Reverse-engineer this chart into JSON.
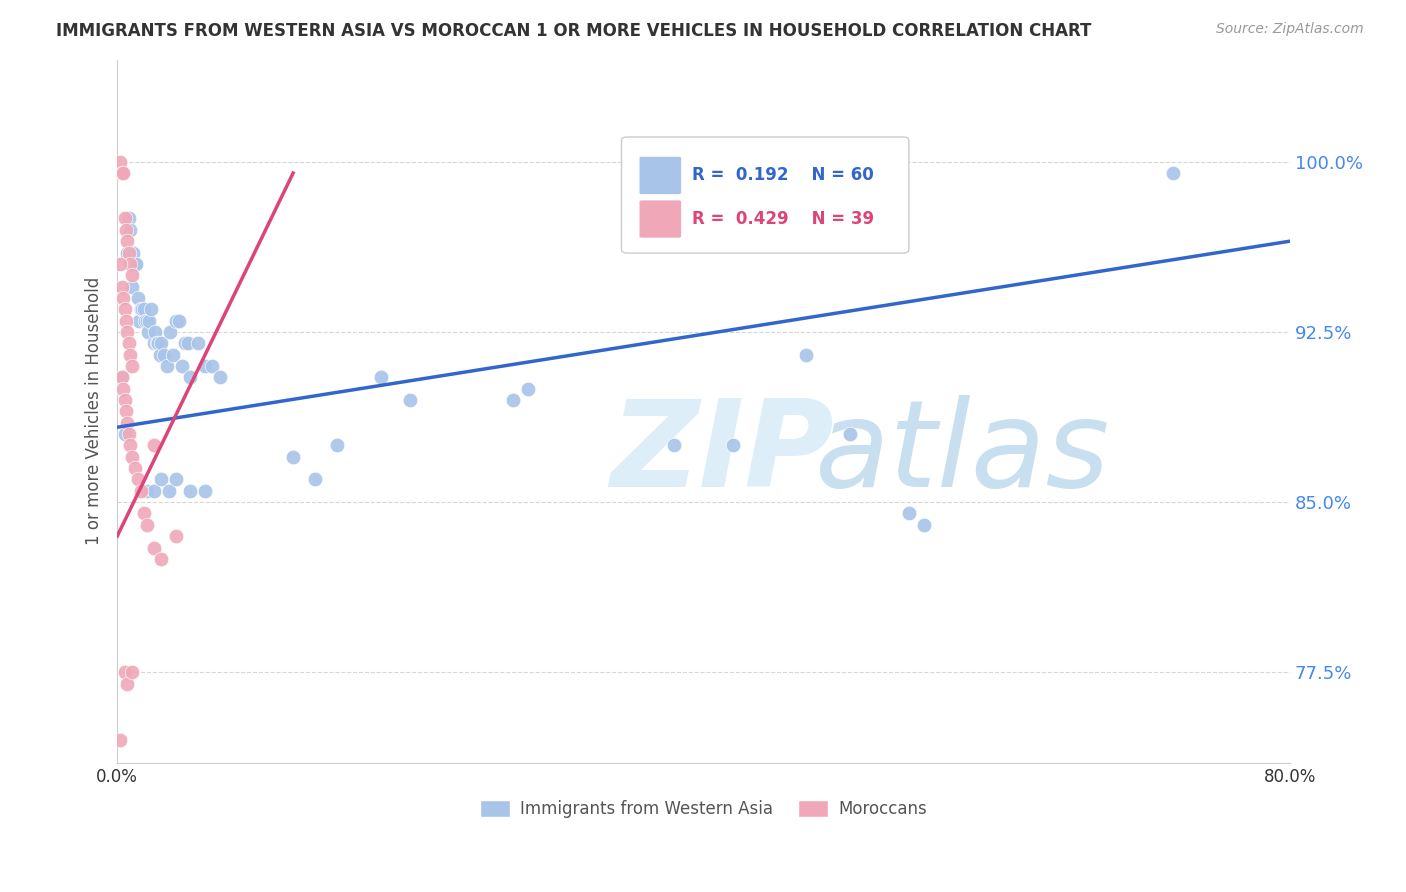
{
  "title": "IMMIGRANTS FROM WESTERN ASIA VS MOROCCAN 1 OR MORE VEHICLES IN HOUSEHOLD CORRELATION CHART",
  "source": "Source: ZipAtlas.com",
  "ylabel": "1 or more Vehicles in Household",
  "xlim": [
    0.0,
    0.8
  ],
  "ylim": [
    0.735,
    1.045
  ],
  "yticks": [
    0.775,
    0.85,
    0.925,
    1.0
  ],
  "ytick_labels": [
    "77.5%",
    "85.0%",
    "92.5%",
    "100.0%"
  ],
  "xticks": [
    0.0,
    0.1,
    0.2,
    0.3,
    0.4,
    0.5,
    0.6,
    0.7,
    0.8
  ],
  "xtick_labels": [
    "0.0%",
    "",
    "",
    "",
    "",
    "",
    "",
    "",
    "80.0%"
  ],
  "blue_R": 0.192,
  "blue_N": 60,
  "pink_R": 0.429,
  "pink_N": 39,
  "blue_color": "#a8c4e8",
  "pink_color": "#f0a8b8",
  "blue_line_color": "#3366cc",
  "pink_line_color": "#dd4477",
  "scatter_size": 110,
  "blue_scatter": [
    [
      0.003,
      0.905
    ],
    [
      0.005,
      0.88
    ],
    [
      0.007,
      0.96
    ],
    [
      0.008,
      0.975
    ],
    [
      0.009,
      0.97
    ],
    [
      0.01,
      0.945
    ],
    [
      0.011,
      0.96
    ],
    [
      0.012,
      0.955
    ],
    [
      0.013,
      0.955
    ],
    [
      0.014,
      0.94
    ],
    [
      0.015,
      0.93
    ],
    [
      0.016,
      0.935
    ],
    [
      0.017,
      0.935
    ],
    [
      0.018,
      0.935
    ],
    [
      0.019,
      0.93
    ],
    [
      0.02,
      0.93
    ],
    [
      0.021,
      0.925
    ],
    [
      0.022,
      0.93
    ],
    [
      0.023,
      0.935
    ],
    [
      0.025,
      0.92
    ],
    [
      0.026,
      0.925
    ],
    [
      0.027,
      0.92
    ],
    [
      0.028,
      0.92
    ],
    [
      0.029,
      0.915
    ],
    [
      0.03,
      0.92
    ],
    [
      0.032,
      0.915
    ],
    [
      0.034,
      0.91
    ],
    [
      0.036,
      0.925
    ],
    [
      0.038,
      0.915
    ],
    [
      0.04,
      0.93
    ],
    [
      0.042,
      0.93
    ],
    [
      0.044,
      0.91
    ],
    [
      0.046,
      0.92
    ],
    [
      0.048,
      0.92
    ],
    [
      0.05,
      0.905
    ],
    [
      0.055,
      0.92
    ],
    [
      0.06,
      0.91
    ],
    [
      0.065,
      0.91
    ],
    [
      0.07,
      0.905
    ],
    [
      0.02,
      0.855
    ],
    [
      0.025,
      0.855
    ],
    [
      0.03,
      0.86
    ],
    [
      0.035,
      0.855
    ],
    [
      0.04,
      0.86
    ],
    [
      0.05,
      0.855
    ],
    [
      0.06,
      0.855
    ],
    [
      0.12,
      0.87
    ],
    [
      0.135,
      0.86
    ],
    [
      0.15,
      0.875
    ],
    [
      0.18,
      0.905
    ],
    [
      0.2,
      0.895
    ],
    [
      0.27,
      0.895
    ],
    [
      0.28,
      0.9
    ],
    [
      0.38,
      0.875
    ],
    [
      0.42,
      0.875
    ],
    [
      0.47,
      0.915
    ],
    [
      0.5,
      0.88
    ],
    [
      0.54,
      0.845
    ],
    [
      0.55,
      0.84
    ],
    [
      0.72,
      0.995
    ]
  ],
  "pink_scatter": [
    [
      0.002,
      1.0
    ],
    [
      0.003,
      0.995
    ],
    [
      0.004,
      0.995
    ],
    [
      0.005,
      0.975
    ],
    [
      0.006,
      0.97
    ],
    [
      0.007,
      0.965
    ],
    [
      0.008,
      0.96
    ],
    [
      0.009,
      0.955
    ],
    [
      0.01,
      0.95
    ],
    [
      0.002,
      0.955
    ],
    [
      0.003,
      0.945
    ],
    [
      0.004,
      0.94
    ],
    [
      0.005,
      0.935
    ],
    [
      0.006,
      0.93
    ],
    [
      0.007,
      0.925
    ],
    [
      0.008,
      0.92
    ],
    [
      0.009,
      0.915
    ],
    [
      0.01,
      0.91
    ],
    [
      0.003,
      0.905
    ],
    [
      0.004,
      0.9
    ],
    [
      0.005,
      0.895
    ],
    [
      0.006,
      0.89
    ],
    [
      0.007,
      0.885
    ],
    [
      0.008,
      0.88
    ],
    [
      0.009,
      0.875
    ],
    [
      0.01,
      0.87
    ],
    [
      0.012,
      0.865
    ],
    [
      0.014,
      0.86
    ],
    [
      0.016,
      0.855
    ],
    [
      0.018,
      0.845
    ],
    [
      0.02,
      0.84
    ],
    [
      0.025,
      0.83
    ],
    [
      0.03,
      0.825
    ],
    [
      0.005,
      0.775
    ],
    [
      0.007,
      0.77
    ],
    [
      0.002,
      0.745
    ],
    [
      0.04,
      0.835
    ],
    [
      0.01,
      0.775
    ],
    [
      0.025,
      0.875
    ]
  ],
  "blue_trendline": [
    [
      0.0,
      0.883
    ],
    [
      0.8,
      0.965
    ]
  ],
  "pink_trendline": [
    [
      0.0,
      0.835
    ],
    [
      0.12,
      0.995
    ]
  ],
  "watermark_zip": "ZIP",
  "watermark_atlas": "atlas",
  "watermark_color": "#ddeeff",
  "background_color": "#ffffff",
  "grid_color": "#cccccc"
}
